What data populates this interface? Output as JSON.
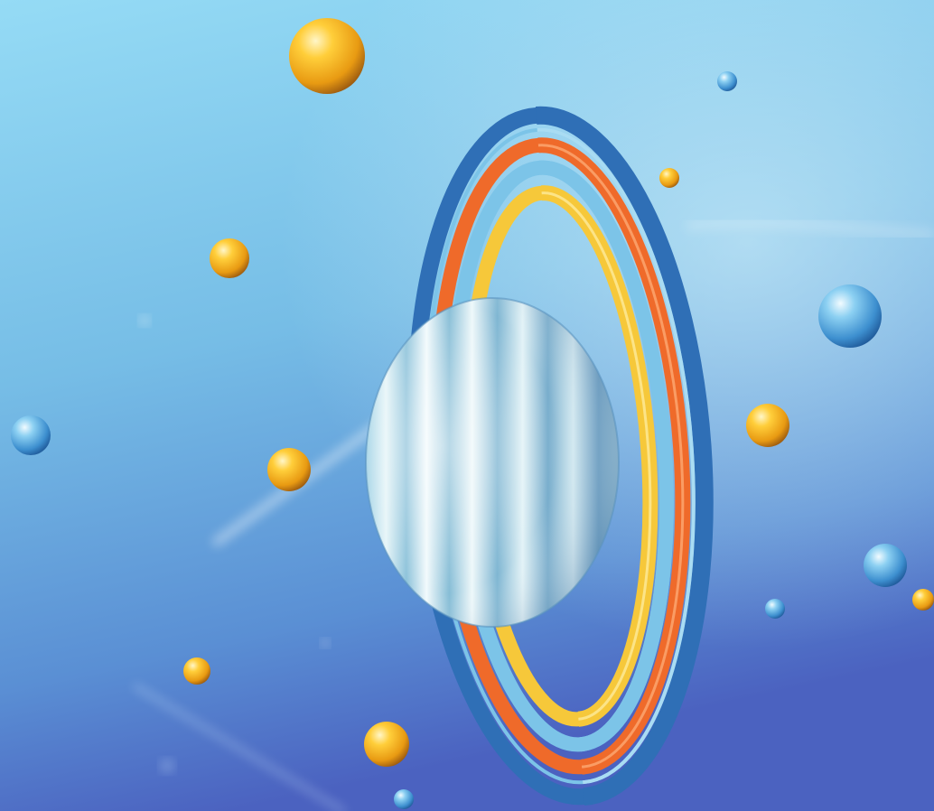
{
  "scene": {
    "subject": "ringed-planet-illustration",
    "palette": {
      "sky_top": "#8fd6f2",
      "sky_mid": "#6fb0dc",
      "sky_bottom": "#4f6fc4",
      "ring_outer": "#2f6fb6",
      "ring_orange": "#ef6a2a",
      "ring_light_blue": "#7cc4e8",
      "ring_yellow": "#f6c83a",
      "planet_base": "#cfe6ee",
      "planet_band": "#7fb7d4",
      "gold_sphere": "#f0a81a",
      "blue_sphere": "#4a9ad2"
    },
    "spheres": [
      {
        "kind": "gold"
      },
      {
        "kind": "gold"
      },
      {
        "kind": "gold"
      },
      {
        "kind": "gold"
      },
      {
        "kind": "gold"
      },
      {
        "kind": "gold"
      },
      {
        "kind": "gold"
      },
      {
        "kind": "gold"
      },
      {
        "kind": "gold"
      },
      {
        "kind": "blue"
      },
      {
        "kind": "blue"
      },
      {
        "kind": "blue"
      },
      {
        "kind": "blue"
      },
      {
        "kind": "blue"
      },
      {
        "kind": "blue"
      }
    ]
  }
}
